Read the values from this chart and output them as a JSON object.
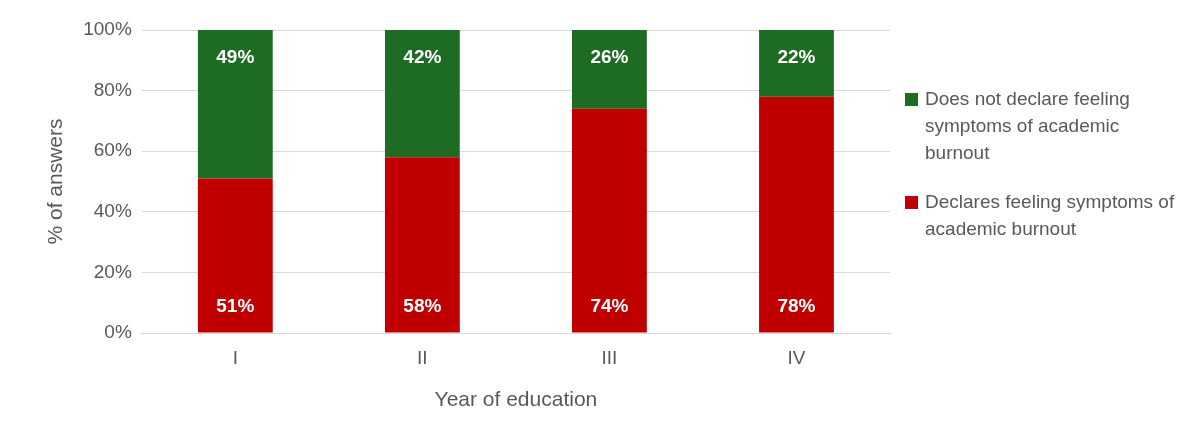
{
  "chart_data": {
    "type": "bar",
    "stacked": true,
    "xlabel": "Year of education",
    "ylabel": "% of answers",
    "categories": [
      "I",
      "II",
      "III",
      "IV"
    ],
    "series": [
      {
        "name": "Declares feeling symptoms of academic burnout",
        "color": "#c00000",
        "values": [
          51,
          58,
          74,
          78
        ]
      },
      {
        "name": "Does not declare feeling symptoms of academic burnout",
        "color": "#1e6b24",
        "values": [
          49,
          42,
          26,
          22
        ]
      }
    ],
    "value_labels": [
      [
        "51%",
        "58%",
        "74%",
        "78%"
      ],
      [
        "49%",
        "42%",
        "26%",
        "22%"
      ]
    ],
    "ylim": [
      0,
      100
    ],
    "yticks": [
      {
        "value": 0,
        "label": "0%"
      },
      {
        "value": 20,
        "label": "20%"
      },
      {
        "value": 40,
        "label": "40%"
      },
      {
        "value": 60,
        "label": "60%"
      },
      {
        "value": 80,
        "label": "80%"
      },
      {
        "value": 100,
        "label": "100%"
      }
    ],
    "grid": "y",
    "legend": "right"
  }
}
